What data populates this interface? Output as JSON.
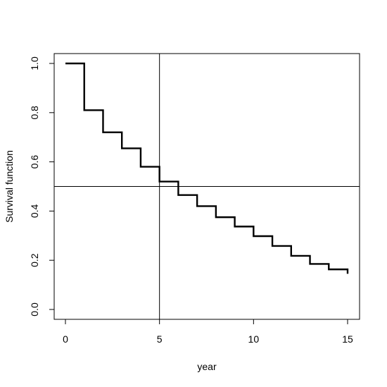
{
  "chart_data": {
    "type": "line",
    "title": "",
    "xlabel": "year",
    "ylabel": "Survival function",
    "xlim": [
      0,
      15
    ],
    "ylim": [
      0,
      1
    ],
    "x_ticks": [
      0,
      5,
      10,
      15
    ],
    "y_ticks": [
      0.0,
      0.2,
      0.4,
      0.6,
      0.8,
      1.0
    ],
    "x_tick_labels": [
      "0",
      "5",
      "10",
      "15"
    ],
    "y_tick_labels": [
      "0.0",
      "0.2",
      "0.4",
      "0.6",
      "0.8",
      "1.0"
    ],
    "grid": false,
    "step": true,
    "series": [
      {
        "x": [
          0,
          1,
          2,
          3,
          4,
          5,
          6,
          7,
          8,
          9,
          10,
          11,
          12,
          13,
          14,
          15
        ],
        "y": [
          1.0,
          0.81,
          0.72,
          0.655,
          0.58,
          0.52,
          0.465,
          0.42,
          0.375,
          0.337,
          0.298,
          0.258,
          0.218,
          0.185,
          0.163,
          0.145
        ]
      }
    ],
    "reference_lines": [
      {
        "orientation": "horizontal",
        "value": 0.5
      },
      {
        "orientation": "vertical",
        "value": 5
      }
    ]
  }
}
